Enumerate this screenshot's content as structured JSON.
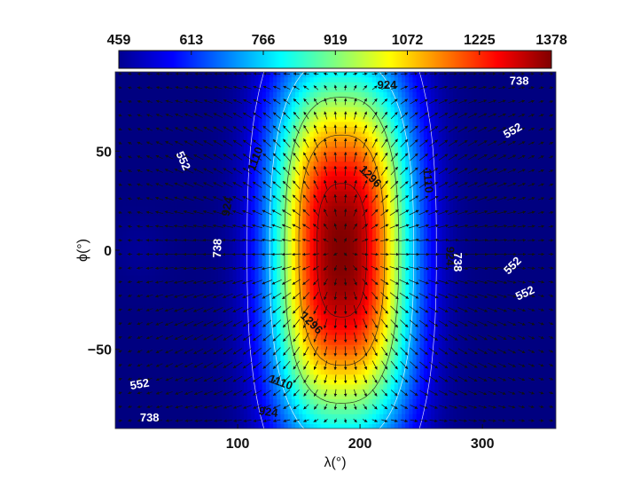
{
  "chart_data": {
    "type": "heatmap",
    "title": "",
    "xlabel": "λ(°)",
    "ylabel": "ϕ(°)",
    "xlim": [
      0,
      360
    ],
    "ylim": [
      -90,
      90
    ],
    "x_ticks": [
      100,
      200,
      300
    ],
    "y_ticks": [
      50,
      0,
      -50
    ],
    "y_tick_labels": [
      "50",
      "0",
      "−50"
    ],
    "colorbar": {
      "position": "top",
      "min": 459,
      "max": 1378,
      "ticks": [
        459,
        613,
        766,
        919,
        1072,
        1225,
        1378
      ],
      "colormap": "jet"
    },
    "field": {
      "hot_spot_center": [
        185,
        0
      ],
      "max_value": 1378,
      "min_value": 459
    },
    "contour_levels": [
      552,
      738,
      924,
      1110,
      1296
    ],
    "contour_labels": [
      {
        "text": "924",
        "lon": 222,
        "lat": 83,
        "color": "#111111",
        "angle": 0
      },
      {
        "text": "738",
        "lon": 330,
        "lat": 85,
        "color": "#ffffff",
        "angle": 0
      },
      {
        "text": "552",
        "lon": 55,
        "lat": 45,
        "color": "#ffffff",
        "angle": 65
      },
      {
        "text": "1110",
        "lon": 115,
        "lat": 46,
        "color": "#111111",
        "angle": -70
      },
      {
        "text": "1296",
        "lon": 208,
        "lat": 37,
        "color": "#111111",
        "angle": 45
      },
      {
        "text": "1110",
        "lon": 255,
        "lat": 35,
        "color": "#111111",
        "angle": 85
      },
      {
        "text": "552",
        "lon": 325,
        "lat": 60,
        "color": "#ffffff",
        "angle": -30
      },
      {
        "text": "924",
        "lon": 92,
        "lat": 22,
        "color": "#111111",
        "angle": -80
      },
      {
        "text": "738",
        "lon": 84,
        "lat": 1,
        "color": "#ffffff",
        "angle": -88
      },
      {
        "text": "924",
        "lon": 273,
        "lat": -3,
        "color": "#111111",
        "angle": 90
      },
      {
        "text": "738",
        "lon": 279,
        "lat": -6,
        "color": "#ffffff",
        "angle": 90
      },
      {
        "text": "552",
        "lon": 325,
        "lat": -8,
        "color": "#ffffff",
        "angle": -45
      },
      {
        "text": "552",
        "lon": 335,
        "lat": -22,
        "color": "#ffffff",
        "angle": -25
      },
      {
        "text": "1296",
        "lon": 160,
        "lat": -37,
        "color": "#111111",
        "angle": 45
      },
      {
        "text": "552",
        "lon": 20,
        "lat": -68,
        "color": "#ffffff",
        "angle": -10
      },
      {
        "text": "1110",
        "lon": 135,
        "lat": -67,
        "color": "#111111",
        "angle": 20
      },
      {
        "text": "924",
        "lon": 125,
        "lat": -82,
        "color": "#111111",
        "angle": 8
      },
      {
        "text": "738",
        "lon": 28,
        "lat": -85,
        "color": "#ffffff",
        "angle": 0
      }
    ],
    "vector_field": {
      "description_key": "wind",
      "spacing_deg": 8,
      "pattern": "divergent flow away from hot spot"
    },
    "grid": false,
    "legend": "none"
  }
}
